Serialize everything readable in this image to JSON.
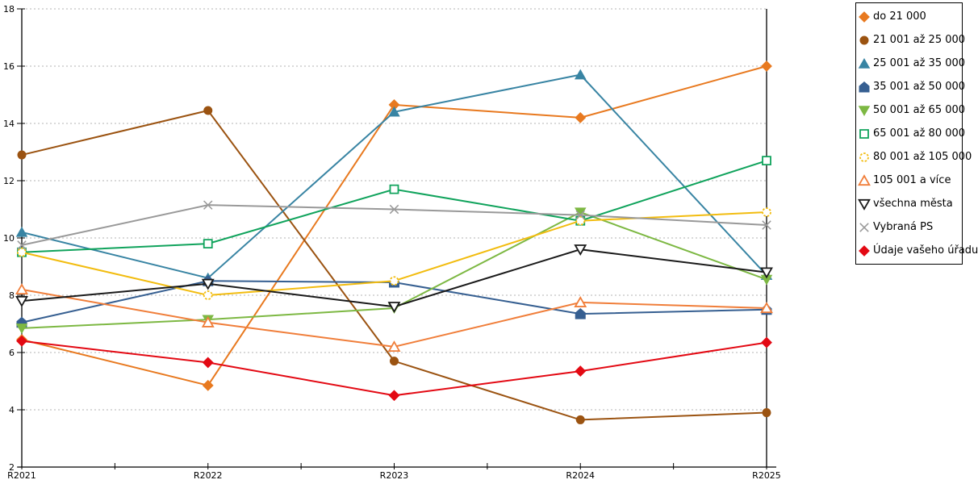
{
  "chart_data": {
    "type": "line",
    "title": "",
    "xlabel": "",
    "ylabel": "",
    "categories": [
      "R2021",
      "R2022",
      "R2023",
      "R2024",
      "R2025"
    ],
    "ylim": [
      2,
      18
    ],
    "y_ticks": [
      2,
      4,
      6,
      8,
      10,
      12,
      14,
      16,
      18
    ],
    "grid": "horizontal-dashed",
    "grid_color": "#b3b3b3",
    "legend_position": "right-outside",
    "series": [
      {
        "name": "do 21 000",
        "marker": "diamond",
        "fill": "filled",
        "color": "#E8791F",
        "values": [
          6.45,
          4.85,
          14.65,
          14.2,
          16.0
        ]
      },
      {
        "name": "21 001 až 25 000",
        "marker": "circle",
        "fill": "filled",
        "color": "#9B5311",
        "values": [
          12.9,
          14.45,
          5.7,
          3.65,
          3.9
        ]
      },
      {
        "name": "25 001 až 35 000",
        "marker": "triangle-up",
        "fill": "filled",
        "color": "#3884A3",
        "values": [
          10.2,
          8.6,
          14.4,
          15.7,
          8.7
        ]
      },
      {
        "name": "35 001 až 50 000",
        "marker": "pentagon",
        "fill": "filled",
        "color": "#365F91",
        "values": [
          7.05,
          8.5,
          8.45,
          7.35,
          7.5
        ]
      },
      {
        "name": "50 001 až 65 000",
        "marker": "triangle-down",
        "fill": "filled",
        "color": "#7DB843",
        "values": [
          6.85,
          7.15,
          7.55,
          10.9,
          8.55
        ]
      },
      {
        "name": "65 001 až 80 000",
        "marker": "square",
        "fill": "open",
        "color": "#10A35C",
        "values": [
          9.5,
          9.8,
          11.7,
          10.6,
          12.7
        ]
      },
      {
        "name": "80 001 až 105 000",
        "marker": "circle",
        "fill": "open",
        "color": "#F2BC0F",
        "values": [
          9.5,
          8.0,
          8.5,
          10.6,
          10.9
        ]
      },
      {
        "name": "105 001 a více",
        "marker": "triangle-up",
        "fill": "open",
        "color": "#F07E3A",
        "values": [
          8.2,
          7.05,
          6.2,
          7.75,
          7.55
        ]
      },
      {
        "name": "všechna města",
        "marker": "triangle-down",
        "fill": "open",
        "color": "#1A1A1A",
        "values": [
          7.8,
          8.4,
          7.6,
          9.6,
          8.8
        ]
      },
      {
        "name": "Vybraná PS",
        "marker": "x",
        "fill": "open",
        "color": "#999999",
        "values": [
          9.75,
          11.15,
          11.0,
          10.8,
          10.45
        ]
      },
      {
        "name": "Údaje vašeho úřadu",
        "marker": "diamond",
        "fill": "filled",
        "color": "#E30913",
        "values": [
          6.4,
          5.65,
          4.5,
          5.35,
          6.35
        ]
      }
    ]
  }
}
